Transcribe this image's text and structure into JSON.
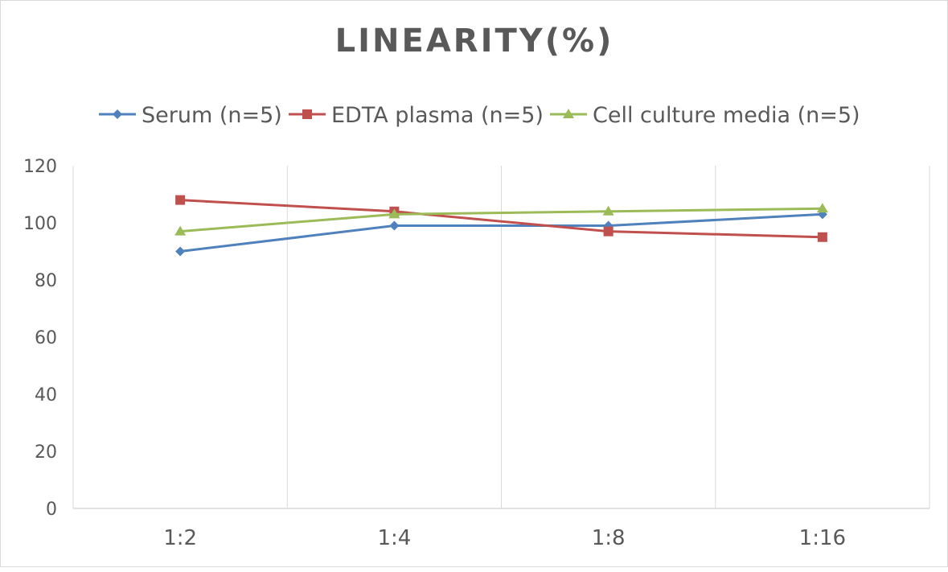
{
  "chart_data": {
    "type": "line",
    "title": "LINEARITY(%)",
    "xlabel": "",
    "ylabel": "",
    "categories": [
      "1:2",
      "1:4",
      "1:8",
      "1:16"
    ],
    "ylim": [
      0,
      120
    ],
    "yticks": [
      0,
      20,
      40,
      60,
      80,
      100,
      120
    ],
    "grid": "vertical",
    "legend": "top",
    "series": [
      {
        "name": "Serum (n=5)",
        "values": [
          90,
          99,
          99,
          103
        ],
        "color": "#4F81BD",
        "marker": "diamond"
      },
      {
        "name": "EDTA plasma (n=5)",
        "values": [
          108,
          104,
          97,
          95
        ],
        "color": "#C0504D",
        "marker": "square"
      },
      {
        "name": "Cell culture media (n=5)",
        "values": [
          97,
          103,
          104,
          105
        ],
        "color": "#9BBB59",
        "marker": "triangle"
      }
    ]
  }
}
